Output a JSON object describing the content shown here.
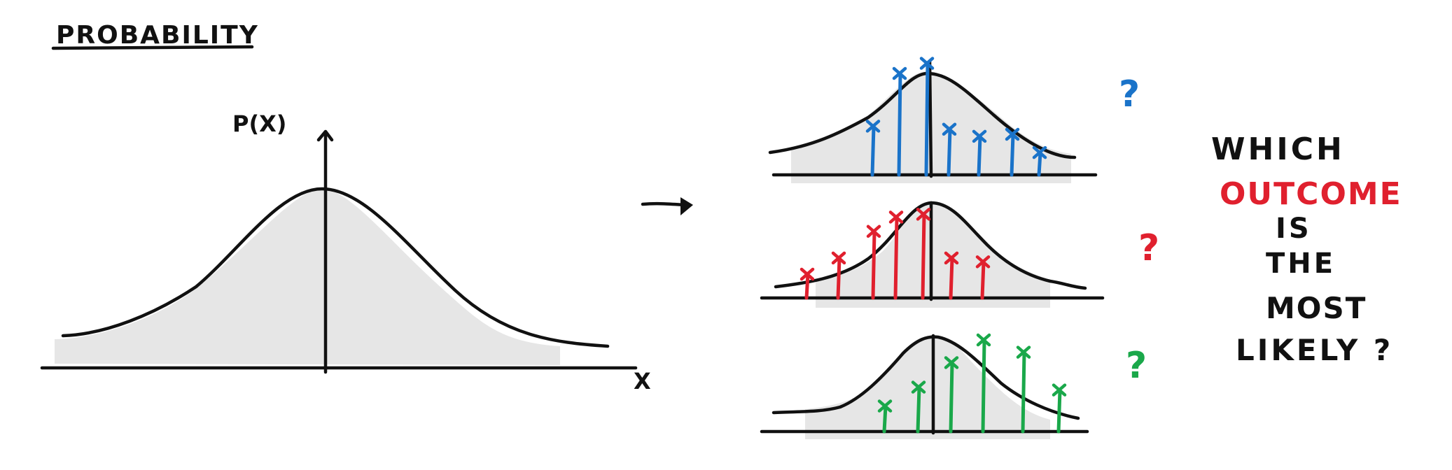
{
  "title": "PROBABILITY",
  "axis": {
    "y_label": "P(X)",
    "x_label": "X"
  },
  "question": {
    "line1": "WHICH",
    "line2": "OUTCOME",
    "line3": "IS",
    "line4": "THE",
    "line5": "MOST",
    "line6": "LIKELY ?"
  },
  "question_marks": {
    "blue": "?",
    "red": "?",
    "green": "?"
  },
  "colors": {
    "ink": "#111111",
    "shade": "#e6e6e6",
    "blue": "#1a73c9",
    "red": "#e0202e",
    "green": "#1aa84a"
  },
  "samples": [
    {
      "name": "blue",
      "relative_heights": [
        0.48,
        1.0,
        1.1,
        0.45,
        0.38,
        0.4,
        0.22
      ]
    },
    {
      "name": "red",
      "relative_heights": [
        0.25,
        0.42,
        0.7,
        0.85,
        0.88,
        0.42,
        0.38
      ]
    },
    {
      "name": "green",
      "relative_heights": [
        0.27,
        0.47,
        0.73,
        0.97,
        0.84,
        0.44
      ]
    }
  ]
}
